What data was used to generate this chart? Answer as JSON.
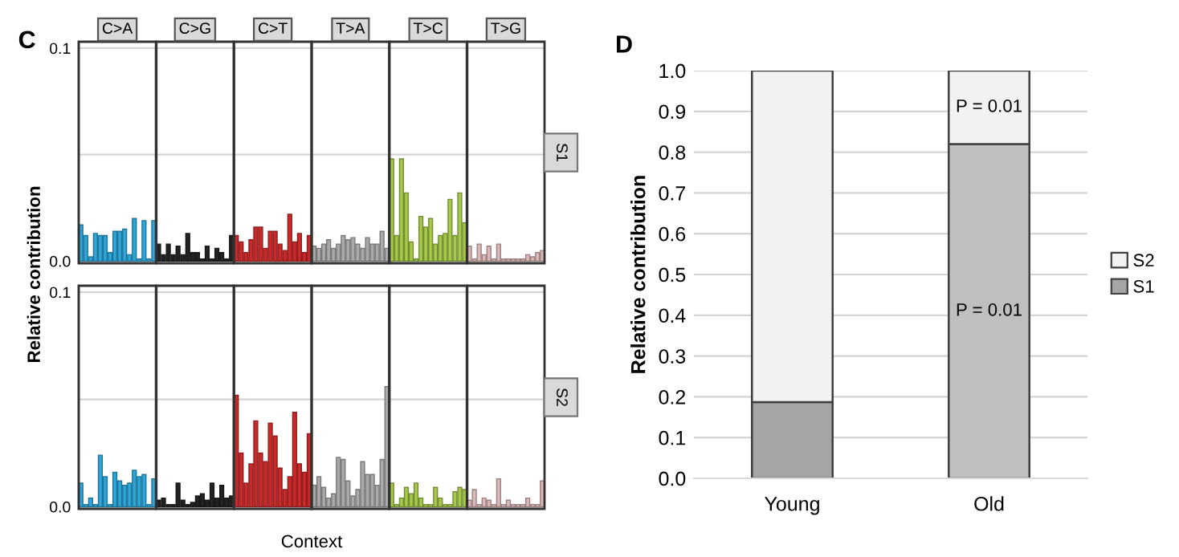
{
  "chart_data": [
    {
      "type": "bar",
      "categories": [
        null,
        null,
        null,
        null,
        null,
        null,
        null,
        null,
        null,
        null,
        null,
        null,
        null,
        null,
        null,
        null,
        null,
        null,
        null,
        null,
        null,
        null,
        null,
        null,
        null,
        null,
        null,
        null,
        null,
        null,
        null,
        null,
        null,
        null,
        null,
        null,
        null,
        null,
        null,
        null,
        null,
        null,
        null,
        null,
        null,
        null,
        null,
        null,
        null,
        null,
        null,
        null,
        null,
        null,
        null,
        null,
        null,
        null,
        null,
        null,
        null,
        null,
        null,
        null,
        null,
        null,
        null,
        null,
        null,
        null,
        null,
        null,
        null,
        null,
        null,
        null,
        null,
        null,
        null,
        null,
        null,
        null,
        null,
        null,
        null,
        null,
        null,
        null,
        null,
        null,
        null,
        null,
        null,
        null,
        null,
        null
      ],
      "values": [
        0.017,
        0.012,
        0.002,
        0.013,
        0.012,
        0.012,
        0.004,
        0.014,
        0.014,
        0.015,
        0.003,
        0.02,
        0.001,
        0.019,
        0.001,
        0.019,
        0.008,
        0.003,
        0.008,
        0.003,
        0.007,
        0.003,
        0.013,
        0.004,
        0.004,
        0.001,
        0.007,
        0.001,
        0.006,
        0.004,
        0.001,
        0.012,
        0.012,
        0.009,
        0.004,
        0.01,
        0.016,
        0.016,
        0.006,
        0.014,
        0.014,
        0.008,
        0.005,
        0.022,
        0.009,
        0.013,
        0.004,
        0.012,
        0.007,
        0.006,
        0.008,
        0.01,
        0.006,
        0.008,
        0.012,
        0.01,
        0.011,
        0.008,
        0.006,
        0.011,
        0.008,
        0.008,
        0.014,
        0.006,
        0.048,
        0.012,
        0.048,
        0.032,
        0.009,
        0.001,
        0.021,
        0.016,
        0.02,
        0.008,
        0.012,
        0.013,
        0.029,
        0.012,
        0.032,
        0.018,
        0.007,
        0.001,
        0.008,
        0.003,
        0.007,
        0.001,
        0.008,
        0.001,
        0.001,
        0.001,
        0.001,
        0.001,
        0.003,
        0.002,
        0.004,
        0.005
      ],
      "colors": [
        "#2ea6d9",
        "#2ea6d9",
        "#2ea6d9",
        "#2ea6d9",
        "#2ea6d9",
        "#2ea6d9",
        "#2ea6d9",
        "#2ea6d9",
        "#2ea6d9",
        "#2ea6d9",
        "#2ea6d9",
        "#2ea6d9",
        "#2ea6d9",
        "#2ea6d9",
        "#2ea6d9",
        "#2ea6d9",
        "#222222",
        "#222222",
        "#222222",
        "#222222",
        "#222222",
        "#222222",
        "#222222",
        "#222222",
        "#222222",
        "#222222",
        "#222222",
        "#222222",
        "#222222",
        "#222222",
        "#222222",
        "#222222",
        "#cc2a2a",
        "#cc2a2a",
        "#cc2a2a",
        "#cc2a2a",
        "#cc2a2a",
        "#cc2a2a",
        "#cc2a2a",
        "#cc2a2a",
        "#cc2a2a",
        "#cc2a2a",
        "#cc2a2a",
        "#cc2a2a",
        "#cc2a2a",
        "#cc2a2a",
        "#cc2a2a",
        "#cc2a2a",
        "#aaaaaa",
        "#aaaaaa",
        "#aaaaaa",
        "#aaaaaa",
        "#aaaaaa",
        "#aaaaaa",
        "#aaaaaa",
        "#aaaaaa",
        "#aaaaaa",
        "#aaaaaa",
        "#aaaaaa",
        "#aaaaaa",
        "#aaaaaa",
        "#aaaaaa",
        "#aaaaaa",
        "#aaaaaa",
        "#a6c94a",
        "#a6c94a",
        "#a6c94a",
        "#a6c94a",
        "#a6c94a",
        "#a6c94a",
        "#a6c94a",
        "#a6c94a",
        "#a6c94a",
        "#a6c94a",
        "#a6c94a",
        "#a6c94a",
        "#a6c94a",
        "#a6c94a",
        "#a6c94a",
        "#a6c94a",
        "#dcb8b8",
        "#dcb8b8",
        "#dcb8b8",
        "#dcb8b8",
        "#dcb8b8",
        "#dcb8b8",
        "#dcb8b8",
        "#dcb8b8",
        "#dcb8b8",
        "#dcb8b8",
        "#dcb8b8",
        "#dcb8b8",
        "#dcb8b8",
        "#dcb8b8",
        "#dcb8b8",
        "#dcb8b8"
      ],
      "ylim": [
        -0.001,
        0.103
      ],
      "yticks": [
        {
          "value": 0,
          "label": "0.0"
        },
        {
          "value": 0.05,
          "label": null
        },
        {
          "value": 0.1,
          "label": "0.1"
        }
      ],
      "grid": "y",
      "ylabel": "Relative contribution",
      "annotations": [
        "C",
        "C>A",
        "C>G",
        "C>T",
        "T>A",
        "T>C",
        "T>G",
        "S1"
      ]
    },
    {
      "type": "bar",
      "categories": [
        null,
        null,
        null,
        null,
        null,
        null,
        null,
        null,
        null,
        null,
        null,
        null,
        null,
        null,
        null,
        null,
        null,
        null,
        null,
        null,
        null,
        null,
        null,
        null,
        null,
        null,
        null,
        null,
        null,
        null,
        null,
        null,
        null,
        null,
        null,
        null,
        null,
        null,
        null,
        null,
        null,
        null,
        null,
        null,
        null,
        null,
        null,
        null,
        null,
        null,
        null,
        null,
        null,
        null,
        null,
        null,
        null,
        null,
        null,
        null,
        null,
        null,
        null,
        null,
        null,
        null,
        null,
        null,
        null,
        null,
        null,
        null,
        null,
        null,
        null,
        null,
        null,
        null,
        null,
        null,
        null,
        null,
        null,
        null,
        null,
        null,
        null,
        null,
        null,
        null,
        null,
        null,
        null,
        null,
        null,
        null
      ],
      "values": [
        0.011,
        0.001,
        0.004,
        0.001,
        0.024,
        0.014,
        0.001,
        0.016,
        0.012,
        0.01,
        0.011,
        0.017,
        0.014,
        0.015,
        0.001,
        0.013,
        0.003,
        0.004,
        0.001,
        0.001,
        0.011,
        0.003,
        0.001,
        0.002,
        0.005,
        0.006,
        0.003,
        0.011,
        0.004,
        0.01,
        0.004,
        0.005,
        0.052,
        0.025,
        0.011,
        0.02,
        0.04,
        0.025,
        0.021,
        0.039,
        0.033,
        0.018,
        0.008,
        0.014,
        0.044,
        0.02,
        0.016,
        0.034,
        0.01,
        0.014,
        0.009,
        0.004,
        0.006,
        0.023,
        0.022,
        0.012,
        0.005,
        0.008,
        0.021,
        0.015,
        0.015,
        0.01,
        0.022,
        0.056,
        0.011,
        0.001,
        0.004,
        0.009,
        0.006,
        0.011,
        0.004,
        0.001,
        0.001,
        0.009,
        0.004,
        0.001,
        0.001,
        0.007,
        0.009,
        0.008,
        0.003,
        0.008,
        0.001,
        0.004,
        0.003,
        0.001,
        0.013,
        0.001,
        0.003,
        0.001,
        0.001,
        0.001,
        0.004,
        0.001,
        0.001,
        0.012
      ],
      "colors": [
        "#2ea6d9",
        "#2ea6d9",
        "#2ea6d9",
        "#2ea6d9",
        "#2ea6d9",
        "#2ea6d9",
        "#2ea6d9",
        "#2ea6d9",
        "#2ea6d9",
        "#2ea6d9",
        "#2ea6d9",
        "#2ea6d9",
        "#2ea6d9",
        "#2ea6d9",
        "#2ea6d9",
        "#2ea6d9",
        "#222222",
        "#222222",
        "#222222",
        "#222222",
        "#222222",
        "#222222",
        "#222222",
        "#222222",
        "#222222",
        "#222222",
        "#222222",
        "#222222",
        "#222222",
        "#222222",
        "#222222",
        "#222222",
        "#cc2a2a",
        "#cc2a2a",
        "#cc2a2a",
        "#cc2a2a",
        "#cc2a2a",
        "#cc2a2a",
        "#cc2a2a",
        "#cc2a2a",
        "#cc2a2a",
        "#cc2a2a",
        "#cc2a2a",
        "#cc2a2a",
        "#cc2a2a",
        "#cc2a2a",
        "#cc2a2a",
        "#cc2a2a",
        "#aaaaaa",
        "#aaaaaa",
        "#aaaaaa",
        "#aaaaaa",
        "#aaaaaa",
        "#aaaaaa",
        "#aaaaaa",
        "#aaaaaa",
        "#aaaaaa",
        "#aaaaaa",
        "#aaaaaa",
        "#aaaaaa",
        "#aaaaaa",
        "#aaaaaa",
        "#aaaaaa",
        "#aaaaaa",
        "#a6c94a",
        "#a6c94a",
        "#a6c94a",
        "#a6c94a",
        "#a6c94a",
        "#a6c94a",
        "#a6c94a",
        "#a6c94a",
        "#a6c94a",
        "#a6c94a",
        "#a6c94a",
        "#a6c94a",
        "#a6c94a",
        "#a6c94a",
        "#a6c94a",
        "#a6c94a",
        "#dcb8b8",
        "#dcb8b8",
        "#dcb8b8",
        "#dcb8b8",
        "#dcb8b8",
        "#dcb8b8",
        "#dcb8b8",
        "#dcb8b8",
        "#dcb8b8",
        "#dcb8b8",
        "#dcb8b8",
        "#dcb8b8",
        "#dcb8b8",
        "#dcb8b8",
        "#dcb8b8",
        "#dcb8b8"
      ],
      "ylim": [
        -0.001,
        0.103
      ],
      "yticks": [
        {
          "value": 0,
          "label": "0.0"
        },
        {
          "value": 0.05,
          "label": null
        },
        {
          "value": 0.1,
          "label": "0.1"
        }
      ],
      "grid": "y",
      "xlabel": "Context",
      "annotations": [
        "S2"
      ]
    },
    {
      "type": "bar",
      "stacked": true,
      "categories": [
        "Young",
        "Old"
      ],
      "series": [
        {
          "name": "S1",
          "colors": [
            "#a5a5a5",
            "#bfbfbf"
          ],
          "values": [
            0.187,
            0.82
          ]
        },
        {
          "name": "S2",
          "colors": [
            "#f2f2f2",
            "#f2f2f2"
          ],
          "values": [
            0.813,
            0.18
          ]
        }
      ],
      "ylim": [
        0,
        1
      ],
      "yticks": [
        {
          "value": 0,
          "label": "0.0"
        },
        {
          "value": 0.1,
          "label": "0.1"
        },
        {
          "value": 0.2,
          "label": "0.2"
        },
        {
          "value": 0.3,
          "label": "0.3"
        },
        {
          "value": 0.4,
          "label": "0.4"
        },
        {
          "value": 0.5,
          "label": "0.5"
        },
        {
          "value": 0.6,
          "label": "0.6"
        },
        {
          "value": 0.7,
          "label": "0.7"
        },
        {
          "value": 0.8,
          "label": "0.8"
        },
        {
          "value": 0.9,
          "label": "0.9"
        },
        {
          "value": 1,
          "label": "1.0"
        }
      ],
      "grid": "y",
      "legend": "right",
      "ylabel": "Relative contribution",
      "annotations": [
        "D",
        "P = 0.01",
        "P = 0.01"
      ]
    }
  ]
}
